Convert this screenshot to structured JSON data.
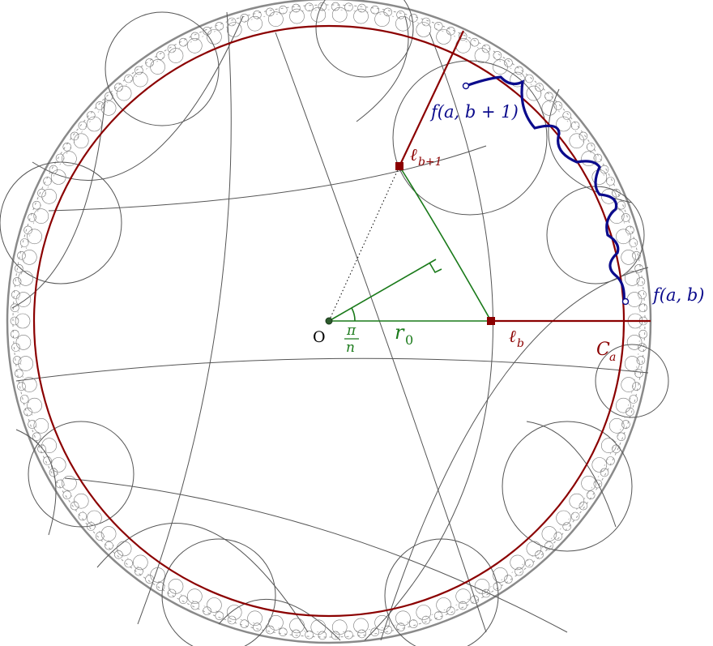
{
  "labels": {
    "origin": "O",
    "angle_num": "π",
    "angle_den": "n",
    "r0_base": "r",
    "r0_sub": "0",
    "lb_base": "ℓ",
    "lb_sub": "b",
    "lb1_base": "ℓ",
    "lb1_sub": "b+1",
    "ca_base": "C",
    "ca_sub": "a",
    "fab": "f(a, b)",
    "fab1": "f(a, b + 1)"
  },
  "colors": {
    "disk_stroke": "#8a8a8a",
    "tiling_stroke": "#555555",
    "circle_ca": "#8b0000",
    "ray": "#8b0000",
    "green": "#1a7a1a",
    "blue": "#0b0b8c",
    "text": "#000000"
  }
}
